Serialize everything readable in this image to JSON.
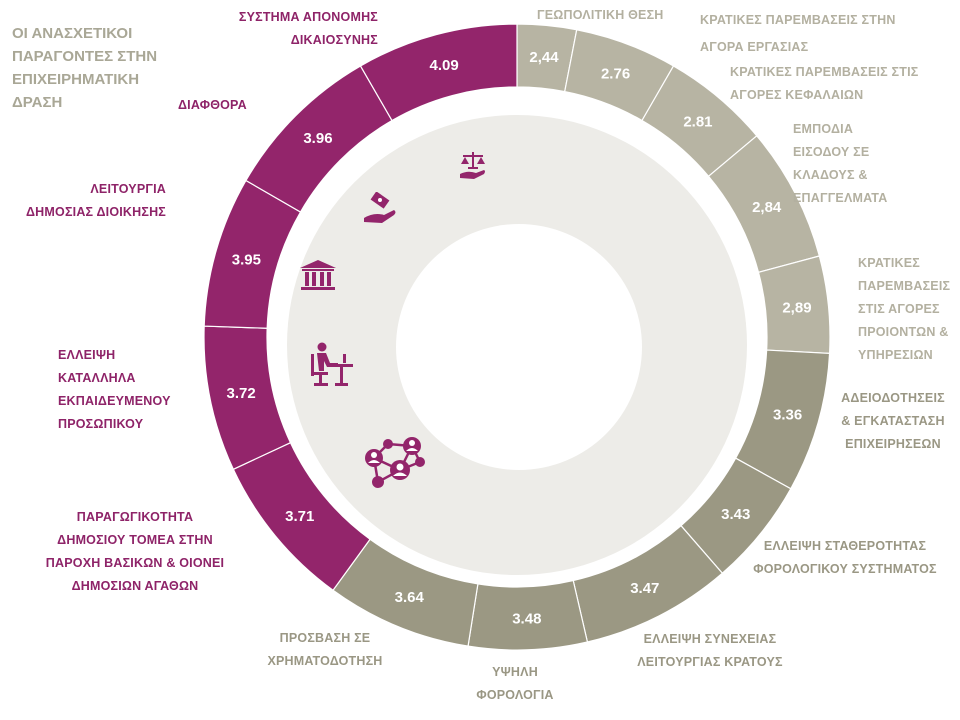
{
  "title": "ΟΙ ΑΝΑΣΧΕΤΙΚΟΙ ΠΑΡΑΓΟΝΤΕΣ ΣΤΗΝ ΕΠΙΧΕΙΡΗΜΑΤΙΚΗ ΔΡΑΣΗ",
  "colors": {
    "purple": "#93256b",
    "light": "#b7b4a3",
    "dark": "#9b9883",
    "disc": "#edece8"
  },
  "chart_data": {
    "type": "pie",
    "title": "ΟΙ ΑΝΑΣΧΕΤΙΚΟΙ ΠΑΡΑΓΟΝΤΕΣ ΣΤΗΝ ΕΠΙΧΕΙΡΗΜΑΤΙΚΗ ΔΡΑΣΗ",
    "slices": [
      {
        "label": "ΓΕΩΠΟΛΙΤΙΚΗ ΘΕΣΗ",
        "value": "2,44",
        "group": "light"
      },
      {
        "label": "ΚΡΑΤΙΚΕΣ ΠΑΡΕΜΒΑΣΕΙΣ ΣΤΗΝ ΑΓΟΡΑ ΕΡΓΑΣΙΑΣ",
        "value": "2.76",
        "group": "light"
      },
      {
        "label": "ΚΡΑΤΙΚΕΣ ΠΑΡΕΜΒΑΣΕΙΣ ΣΤΙΣ ΑΓΟΡΕΣ ΚΕΦΑΛΑΙΩΝ",
        "value": "2.81",
        "group": "light"
      },
      {
        "label": "ΕΜΠΟΔΙΑ ΕΙΣΟΔΟΥ ΣΕ ΚΛΑΔΟΥΣ & ΕΠΑΓΓΕΛΜΑΤΑ",
        "value": "2,84",
        "group": "light"
      },
      {
        "label": "ΚΡΑΤΙΚΕΣ ΠΑΡΕΜΒΑΣΕΙΣ ΣΤΙΣ ΑΓΟΡΕΣ ΠΡΟΙΟΝΤΩΝ & ΥΠΗΡΕΣΙΩΝ",
        "value": "2,89",
        "group": "light"
      },
      {
        "label": "ΑΔΕΙΟΔΟΤΗΣΕΙΣ & ΕΓΚΑΤΑΣΤΑΣΗ ΕΠΙΧΕΙΡΗΣΕΩΝ",
        "value": "3.36",
        "group": "dark"
      },
      {
        "label": "ΕΛΛΕΙΨΗ ΣΤΑΘΕΡΟΤΗΤΑΣ ΦΟΡΟΛΟΓΙΚΟΥ ΣΥΣΤΗΜΑΤΟΣ",
        "value": "3.43",
        "group": "dark"
      },
      {
        "label": "ΕΛΛΕΙΨΗ ΣΥΝΕΧΕΙΑΣ ΛΕΙΤΟΥΡΓΙΑΣ ΚΡΑΤΟΥΣ",
        "value": "3.47",
        "group": "dark"
      },
      {
        "label": "ΥΨΗΛΗ ΦΟΡΟΛΟΓΙΑ",
        "value": "3.48",
        "group": "dark"
      },
      {
        "label": "ΠΡΟΣΒΑΣΗ ΣΕ ΧΡΗΜΑΤΟΔΟΤΗΣΗ",
        "value": "3.64",
        "group": "dark"
      },
      {
        "label": "ΠΑΡΑΓΩΓΙΚΟΤΗΤΑ ΔΗΜΟΣΙΟΥ ΤΟΜΕΑ ΣΤΗΝ ΠΑΡΟΧΗ ΒΑΣΙΚΩΝ & ΟΙΟΝΕΙ ΔΗΜΟΣΙΩΝ ΑΓΑΘΩΝ",
        "value": "3.71",
        "group": "purple"
      },
      {
        "label": "ΕΛΛΕΙΨΗ ΚΑΤΑΛΛΗΛΑ ΕΚΠΑΙΔΕΥΜΕΝΟΥ ΠΡΟΣΩΠΙΚΟΥ",
        "value": "3.72",
        "group": "purple"
      },
      {
        "label": "ΛΕΙΤΟΥΡΓΙΑ ΔΗΜΟΣΙΑΣ ΔΙΟΙΚΗΣΗΣ",
        "value": "3.95",
        "group": "purple"
      },
      {
        "label": "ΔΙΑΦΘΟΡΑ",
        "value": "3.96",
        "group": "purple"
      },
      {
        "label": "ΣΥΣΤΗΜΑ ΑΠΟΝΟΜΗΣ ΔΙΚΑΙΟΣΥΝΗΣ",
        "value": "4.09",
        "group": "purple"
      }
    ]
  }
}
